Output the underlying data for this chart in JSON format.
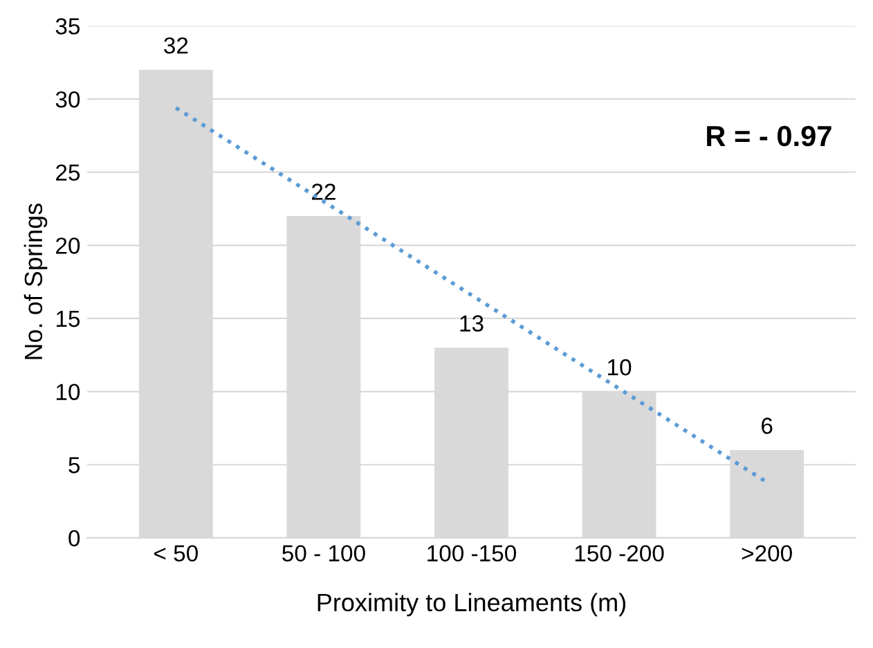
{
  "chart_data": {
    "type": "bar",
    "xlabel": "Proximity to Lineaments (m)",
    "ylabel": "No. of Springs",
    "categories": [
      "< 50",
      "50 - 100",
      "100 -150",
      "150 -200",
      ">200"
    ],
    "series": [
      {
        "color": "#d9d9d9",
        "values": [
          32,
          22,
          13,
          10,
          6
        ],
        "value_labels": [
          "32",
          "22",
          "13",
          "10",
          "6"
        ]
      },
      {
        "type": "line",
        "color": "#5b9bd5",
        "line_style": "dotted",
        "x": [
          "< 50",
          ">200"
        ],
        "values": [
          29.4,
          3.8
        ]
      }
    ],
    "ylim": [
      0,
      35
    ],
    "yticks": [
      0,
      5,
      10,
      15,
      20,
      25,
      30,
      35
    ],
    "grid": "y",
    "annotations": [
      "R = - 0.97"
    ]
  }
}
